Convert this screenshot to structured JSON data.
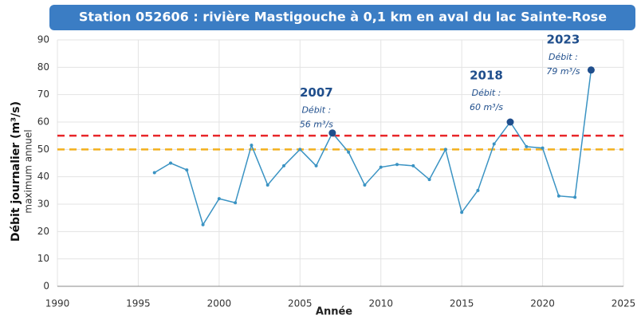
{
  "chart_data": {
    "type": "line",
    "title": "Station 052606 : rivière Mastigouche à 0,1 km en aval du lac Sainte-Rose",
    "x_label": "Année",
    "y_label": "Débit journalier (m³/s)",
    "y_sublabel": "maximum annuel",
    "x": [
      1996,
      1997,
      1998,
      1999,
      2000,
      2001,
      2002,
      2003,
      2004,
      2005,
      2006,
      2007,
      2008,
      2009,
      2010,
      2011,
      2012,
      2013,
      2014,
      2015,
      2016,
      2017,
      2018,
      2019,
      2020,
      2021,
      2022,
      2023
    ],
    "series": [
      {
        "name": "Débit",
        "color": "#3a93c3",
        "values": [
          41.5,
          45,
          42.5,
          22.5,
          32,
          30.5,
          51.5,
          37,
          44,
          50,
          44,
          56,
          49,
          37,
          43.5,
          44.5,
          44,
          39,
          50,
          27,
          35,
          52,
          60,
          51,
          50.5,
          33,
          32.5,
          79
        ]
      }
    ],
    "highlight_color": "#1f4e8c",
    "reference_lines": [
      {
        "value": 55,
        "color": "#e8262a"
      },
      {
        "value": 50,
        "color": "#f2b01e"
      }
    ],
    "annotations": [
      {
        "title": "2007",
        "text": "Débit :",
        "value": "56 m³/s"
      },
      {
        "title": "2018",
        "text": "Débit :",
        "value": "60 m³/s"
      },
      {
        "title": "2023",
        "text": "Débit :",
        "value": "79 m³/s"
      }
    ],
    "xlim": [
      1990,
      2025
    ],
    "xticks": [
      1990,
      1995,
      2000,
      2005,
      2010,
      2015,
      2020,
      2025
    ],
    "ylim": [
      0,
      90
    ],
    "yticks": [
      0,
      10,
      20,
      30,
      40,
      50,
      60,
      70,
      80,
      90
    ],
    "grid": true
  }
}
